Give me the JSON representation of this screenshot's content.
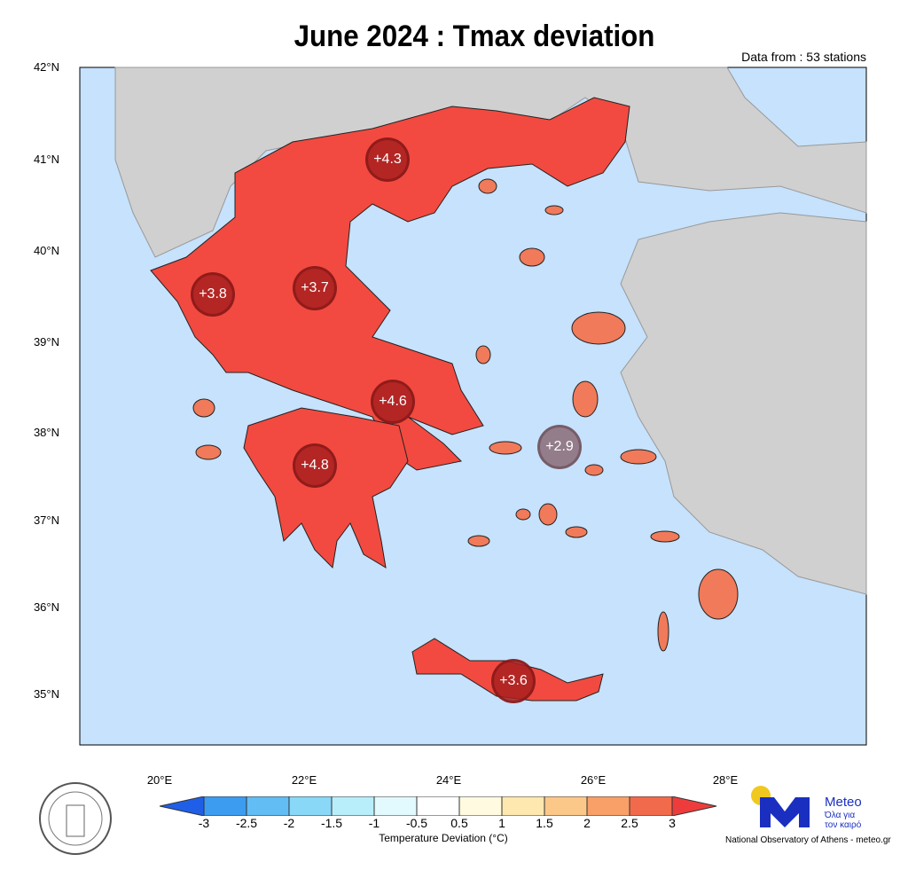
{
  "title": "June 2024 : Tmax deviation",
  "subtitle": "Data from : 53 stations",
  "lat_labels": [
    "42°N",
    "41°N",
    "40°N",
    "39°N",
    "38°N",
    "37°N",
    "36°N",
    "35°N"
  ],
  "lon_labels": [
    "20°E",
    "22°E",
    "24°E",
    "26°E",
    "28°E"
  ],
  "stations": [
    {
      "region": "Eastern Macedonia & Thrace",
      "value": "+4.3",
      "color": "#a82020"
    },
    {
      "region": "Epirus",
      "value": "+3.8",
      "color": "#a82020"
    },
    {
      "region": "Thessaly",
      "value": "+3.7",
      "color": "#a82020"
    },
    {
      "region": "Central Greece / Attica",
      "value": "+4.6",
      "color": "#a82020"
    },
    {
      "region": "Peloponnese",
      "value": "+4.8",
      "color": "#a82020"
    },
    {
      "region": "Aegean islands",
      "value": "+2.9",
      "color": "#8a6e78"
    },
    {
      "region": "Crete",
      "value": "+3.6",
      "color": "#a82020"
    }
  ],
  "colorbar": {
    "labels": [
      "-3",
      "-2.5",
      "-2",
      "-1.5",
      "-1",
      "-0.5",
      "0.5",
      "1",
      "1.5",
      "2",
      "2.5",
      "3"
    ],
    "colors": [
      "#1f5fe8",
      "#3c9cf0",
      "#62bdf5",
      "#8ad8f8",
      "#b8eefa",
      "#e2fafd",
      "#ffffff",
      "#fffae0",
      "#ffe8b0",
      "#fcc88a",
      "#f8a068",
      "#f26a4c",
      "#ee3c3c"
    ],
    "title": "Temperature Deviation (°C)"
  },
  "colors": {
    "sea": "#c6e2fc",
    "land_other": "#d0d0d0",
    "mainland": "#f24a40",
    "islands": "#f07a5a"
  },
  "logo": {
    "name": "Meteo",
    "tagline1": "Όλα για",
    "tagline2": "τον καιρό",
    "credit": "National Observatory of Athens - meteo.gr",
    "seal_text": "NATIONAL OBSERVATORY OF ATHENS"
  }
}
